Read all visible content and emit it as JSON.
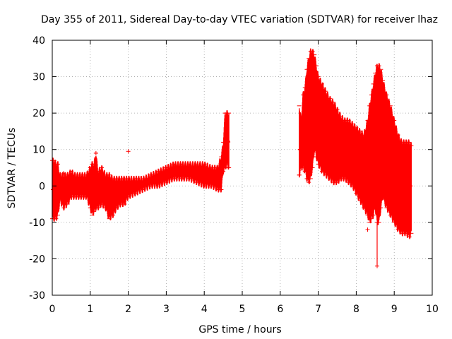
{
  "chart_data": {
    "type": "scatter",
    "title": "Day 355 of 2011, Sidereal Day-to-day VTEC variation (SDTVAR) for receiver lhaz",
    "xlabel": "GPS time / hours",
    "ylabel": "SDTVAR / TECUs",
    "xlim": [
      0,
      10
    ],
    "ylim": [
      -30,
      40
    ],
    "x_ticks": [
      0,
      1,
      2,
      3,
      4,
      5,
      6,
      7,
      8,
      9,
      10
    ],
    "y_ticks": [
      -30,
      -20,
      -10,
      0,
      10,
      20,
      30,
      40
    ],
    "grid": true,
    "legend": "none",
    "color": "#ff0000",
    "marker": "+ with error bars",
    "series": [
      {
        "values_description": "mean with lower and upper error-band bounds",
        "points": [
          {
            "x": 0.0,
            "y": -1,
            "lo": -9,
            "hi": 7
          },
          {
            "x": 0.05,
            "y": -1,
            "lo": -9,
            "hi": 7
          },
          {
            "x": 0.1,
            "y": -1,
            "lo": -9,
            "hi": 6
          },
          {
            "x": 0.15,
            "y": -1,
            "lo": -8,
            "hi": 6
          },
          {
            "x": 0.2,
            "y": -1,
            "lo": -4,
            "hi": 3
          },
          {
            "x": 0.3,
            "y": -1,
            "lo": -6,
            "hi": 3
          },
          {
            "x": 0.4,
            "y": 0,
            "lo": -5,
            "hi": 3
          },
          {
            "x": 0.5,
            "y": 0,
            "lo": -3,
            "hi": 4
          },
          {
            "x": 0.6,
            "y": 0,
            "lo": -3,
            "hi": 3
          },
          {
            "x": 0.7,
            "y": 0,
            "lo": -3,
            "hi": 3
          },
          {
            "x": 0.8,
            "y": 0,
            "lo": -3,
            "hi": 3
          },
          {
            "x": 0.9,
            "y": 0,
            "lo": -3,
            "hi": 3
          },
          {
            "x": 1.0,
            "y": -1,
            "lo": -6,
            "hi": 5
          },
          {
            "x": 1.05,
            "y": -2,
            "lo": -8,
            "hi": 6
          },
          {
            "x": 1.1,
            "y": -1,
            "lo": -7,
            "hi": 6
          },
          {
            "x": 1.15,
            "y": -1,
            "lo": -6,
            "hi": 9
          },
          {
            "x": 1.2,
            "y": -1,
            "lo": -6,
            "hi": 4
          },
          {
            "x": 1.3,
            "y": -1,
            "lo": -5,
            "hi": 5
          },
          {
            "x": 1.4,
            "y": -2,
            "lo": -6,
            "hi": 3
          },
          {
            "x": 1.5,
            "y": -2,
            "lo": -9,
            "hi": 3
          },
          {
            "x": 1.6,
            "y": -2,
            "lo": -8,
            "hi": 2
          },
          {
            "x": 1.7,
            "y": -1,
            "lo": -6,
            "hi": 2
          },
          {
            "x": 1.8,
            "y": -1,
            "lo": -5,
            "hi": 2
          },
          {
            "x": 1.9,
            "y": -1,
            "lo": -5,
            "hi": 2
          },
          {
            "x": 2.0,
            "y": -1,
            "lo": -3,
            "hi": 2
          },
          {
            "x": 2.2,
            "y": 0,
            "lo": -2,
            "hi": 2
          },
          {
            "x": 2.4,
            "y": 0,
            "lo": -1,
            "hi": 2
          },
          {
            "x": 2.6,
            "y": 1,
            "lo": 0,
            "hi": 3
          },
          {
            "x": 2.8,
            "y": 2,
            "lo": 0,
            "hi": 4
          },
          {
            "x": 3.0,
            "y": 3,
            "lo": 1,
            "hi": 5
          },
          {
            "x": 3.2,
            "y": 4,
            "lo": 2,
            "hi": 6
          },
          {
            "x": 3.4,
            "y": 4,
            "lo": 2,
            "hi": 6
          },
          {
            "x": 3.6,
            "y": 4,
            "lo": 2,
            "hi": 6
          },
          {
            "x": 3.8,
            "y": 4,
            "lo": 1,
            "hi": 6
          },
          {
            "x": 4.0,
            "y": 3,
            "lo": 0,
            "hi": 6
          },
          {
            "x": 4.2,
            "y": 3,
            "lo": 0,
            "hi": 5
          },
          {
            "x": 4.35,
            "y": 2,
            "lo": -1,
            "hi": 5
          },
          {
            "x": 4.45,
            "y": 3,
            "lo": -1,
            "hi": 8
          },
          {
            "x": 4.5,
            "y": 7,
            "lo": 4,
            "hi": 12
          },
          {
            "x": 4.55,
            "y": 12,
            "lo": 5,
            "hi": 20
          },
          {
            "x": 4.6,
            "y": 13,
            "lo": 6,
            "hi": 20
          },
          {
            "x": 4.65,
            "y": 12,
            "lo": 5,
            "hi": 20
          },
          {
            "x": 6.5,
            "y": 10,
            "lo": 3,
            "hi": 22
          },
          {
            "x": 6.55,
            "y": 10,
            "lo": 5,
            "hi": 18
          },
          {
            "x": 6.6,
            "y": 12,
            "lo": 5,
            "hi": 25
          },
          {
            "x": 6.65,
            "y": 15,
            "lo": 4,
            "hi": 27
          },
          {
            "x": 6.7,
            "y": 20,
            "lo": 2,
            "hi": 32
          },
          {
            "x": 6.75,
            "y": 24,
            "lo": 1,
            "hi": 35
          },
          {
            "x": 6.8,
            "y": 26,
            "lo": 2,
            "hi": 37
          },
          {
            "x": 6.85,
            "y": 25,
            "lo": 5,
            "hi": 37
          },
          {
            "x": 6.9,
            "y": 24,
            "lo": 10,
            "hi": 36
          },
          {
            "x": 6.95,
            "y": 22,
            "lo": 8,
            "hi": 33
          },
          {
            "x": 7.0,
            "y": 20,
            "lo": 6,
            "hi": 30
          },
          {
            "x": 7.1,
            "y": 18,
            "lo": 4,
            "hi": 28
          },
          {
            "x": 7.2,
            "y": 16,
            "lo": 3,
            "hi": 26
          },
          {
            "x": 7.3,
            "y": 14,
            "lo": 2,
            "hi": 24
          },
          {
            "x": 7.4,
            "y": 12,
            "lo": 1,
            "hi": 23
          },
          {
            "x": 7.5,
            "y": 11,
            "lo": 1,
            "hi": 21
          },
          {
            "x": 7.6,
            "y": 11,
            "lo": 2,
            "hi": 19
          },
          {
            "x": 7.7,
            "y": 10,
            "lo": 2,
            "hi": 18
          },
          {
            "x": 7.8,
            "y": 9,
            "lo": 1,
            "hi": 18
          },
          {
            "x": 7.9,
            "y": 9,
            "lo": 0,
            "hi": 17
          },
          {
            "x": 8.0,
            "y": 8,
            "lo": -2,
            "hi": 16
          },
          {
            "x": 8.1,
            "y": 7,
            "lo": -4,
            "hi": 15
          },
          {
            "x": 8.2,
            "y": 6,
            "lo": -6,
            "hi": 14
          },
          {
            "x": 8.3,
            "y": 8,
            "lo": -8,
            "hi": 18
          },
          {
            "x": 8.35,
            "y": 9,
            "lo": -10,
            "hi": 22
          },
          {
            "x": 8.4,
            "y": 10,
            "lo": -9,
            "hi": 25
          },
          {
            "x": 8.45,
            "y": 12,
            "lo": -8,
            "hi": 28
          },
          {
            "x": 8.5,
            "y": 14,
            "lo": -6,
            "hi": 31
          },
          {
            "x": 8.55,
            "y": 15,
            "lo": -10,
            "hi": 33
          },
          {
            "x": 8.6,
            "y": 14,
            "lo": -10,
            "hi": 33
          },
          {
            "x": 8.65,
            "y": 13,
            "lo": -6,
            "hi": 32
          },
          {
            "x": 8.7,
            "y": 12,
            "lo": -3,
            "hi": 29
          },
          {
            "x": 8.8,
            "y": 10,
            "lo": -6,
            "hi": 25
          },
          {
            "x": 8.9,
            "y": 8,
            "lo": -8,
            "hi": 22
          },
          {
            "x": 9.0,
            "y": 6,
            "lo": -10,
            "hi": 18
          },
          {
            "x": 9.1,
            "y": 4,
            "lo": -12,
            "hi": 14
          },
          {
            "x": 9.2,
            "y": 2,
            "lo": -13,
            "hi": 12
          },
          {
            "x": 9.3,
            "y": 1,
            "lo": -13,
            "hi": 12
          },
          {
            "x": 9.4,
            "y": 0,
            "lo": -14,
            "hi": 12
          },
          {
            "x": 9.45,
            "y": 0,
            "lo": -13,
            "hi": 11
          }
        ],
        "outliers": [
          {
            "x": 2.0,
            "y": 9.5
          },
          {
            "x": 0.3,
            "y": 3.5
          },
          {
            "x": 6.5,
            "y": 3
          },
          {
            "x": 8.3,
            "y": -12
          },
          {
            "x": 8.55,
            "y": -22
          },
          {
            "x": 1.15,
            "y": 9
          }
        ]
      }
    ]
  }
}
